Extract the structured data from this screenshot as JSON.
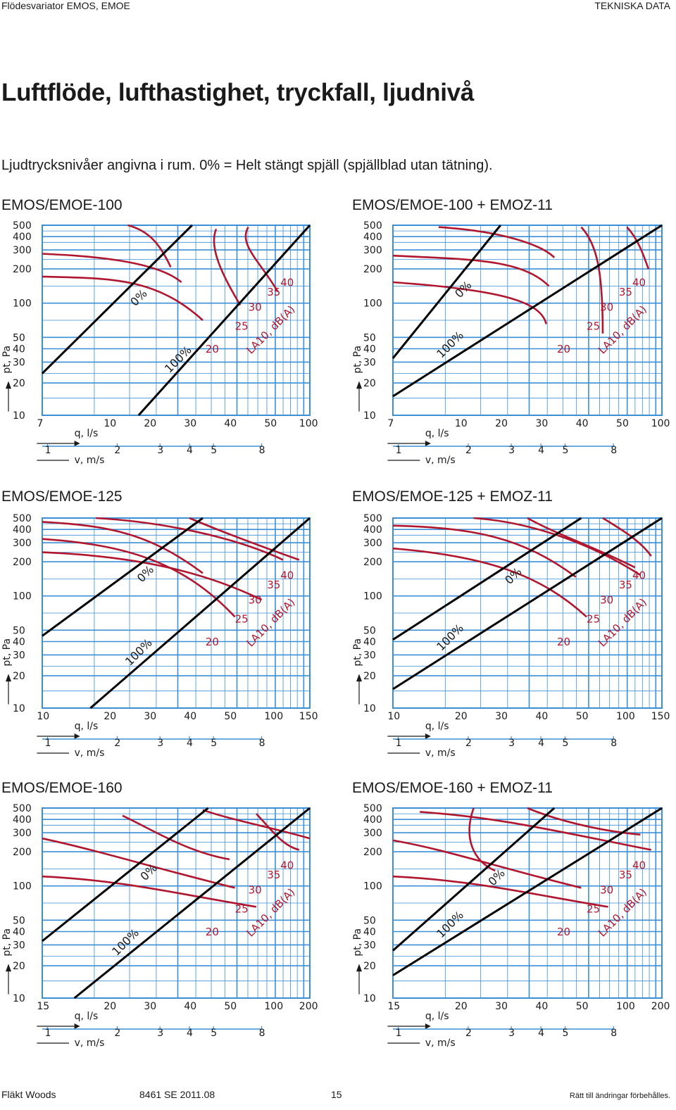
{
  "header": {
    "left": "Flödesvariator EMOS, EMOE",
    "right": "TEKNISKA DATA"
  },
  "title": "Luftflöde, lufthastighet, tryckfall, ljudnivå",
  "subtitle": "Ljudtrycksnivåer angivna i rum. 0% = Helt stängt spjäll (spjällblad utan tätning).",
  "colors": {
    "grid": "#3a8fd6",
    "curve": "#b0172f",
    "diagonal": "#000000",
    "label": "#b0172f",
    "text": "#1a1a1a"
  },
  "labels": {
    "y_axis": "pt, Pa",
    "x_axis": "q, l/s",
    "v_axis": "v, m/s",
    "sound": "LA10, dB(A)",
    "open_label": "0%",
    "closed_label": "100%"
  },
  "charts": [
    {
      "title": "EMOS/EMOE-100",
      "y_ticks": [
        "500",
        "400",
        "300",
        "200",
        "100",
        "50",
        "40",
        "30",
        "20",
        "10"
      ],
      "x_ticks": [
        "7",
        "10",
        "20",
        "30",
        "40",
        "50",
        "100"
      ],
      "v_ticks": [
        "1",
        "2",
        "3",
        "4",
        "5",
        "8"
      ],
      "sound_levels": [
        "20",
        "25",
        "30",
        "35",
        "40"
      ]
    },
    {
      "title": "EMOS/EMOE-100 + EMOZ-11",
      "y_ticks": [
        "500",
        "400",
        "300",
        "200",
        "100",
        "50",
        "40",
        "30",
        "20",
        "10"
      ],
      "x_ticks": [
        "7",
        "10",
        "20",
        "30",
        "40",
        "50",
        "100"
      ],
      "v_ticks": [
        "1",
        "2",
        "3",
        "4",
        "5",
        "8"
      ],
      "sound_levels": [
        "20",
        "25",
        "30",
        "35",
        "40"
      ]
    },
    {
      "title": "EMOS/EMOE-125",
      "y_ticks": [
        "500",
        "400",
        "300",
        "200",
        "100",
        "50",
        "40",
        "30",
        "20",
        "10"
      ],
      "x_ticks": [
        "10",
        "20",
        "30",
        "40",
        "50",
        "100",
        "150"
      ],
      "v_ticks": [
        "1",
        "2",
        "3",
        "4",
        "5",
        "8"
      ],
      "sound_levels": [
        "20",
        "25",
        "30",
        "35",
        "40"
      ]
    },
    {
      "title": "EMOS/EMOE-125 + EMOZ-11",
      "y_ticks": [
        "500",
        "400",
        "300",
        "200",
        "100",
        "50",
        "40",
        "30",
        "20",
        "10"
      ],
      "x_ticks": [
        "10",
        "20",
        "30",
        "40",
        "50",
        "100",
        "150"
      ],
      "v_ticks": [
        "1",
        "2",
        "3",
        "4",
        "5",
        "8"
      ],
      "sound_levels": [
        "20",
        "25",
        "30",
        "35",
        "40"
      ]
    },
    {
      "title": "EMOS/EMOE-160",
      "y_ticks": [
        "500",
        "400",
        "300",
        "200",
        "100",
        "50",
        "40",
        "30",
        "20",
        "10"
      ],
      "x_ticks": [
        "15",
        "20",
        "30",
        "40",
        "50",
        "100",
        "200"
      ],
      "v_ticks": [
        "1",
        "2",
        "3",
        "4",
        "5",
        "8"
      ],
      "sound_levels": [
        "20",
        "25",
        "30",
        "35",
        "40"
      ]
    },
    {
      "title": "EMOS/EMOE-160 + EMOZ-11",
      "y_ticks": [
        "500",
        "400",
        "300",
        "200",
        "100",
        "50",
        "40",
        "30",
        "20",
        "10"
      ],
      "x_ticks": [
        "15",
        "20",
        "30",
        "40",
        "50",
        "100",
        "200"
      ],
      "v_ticks": [
        "1",
        "2",
        "3",
        "4",
        "5",
        "8"
      ],
      "sound_levels": [
        "20",
        "25",
        "30",
        "35",
        "40"
      ]
    }
  ],
  "footer": {
    "company": "Fläkt Woods",
    "doc_number": "8461 SE 2011.08",
    "page": "15",
    "disclaimer": "Rätt till ändringar förbehålles."
  }
}
